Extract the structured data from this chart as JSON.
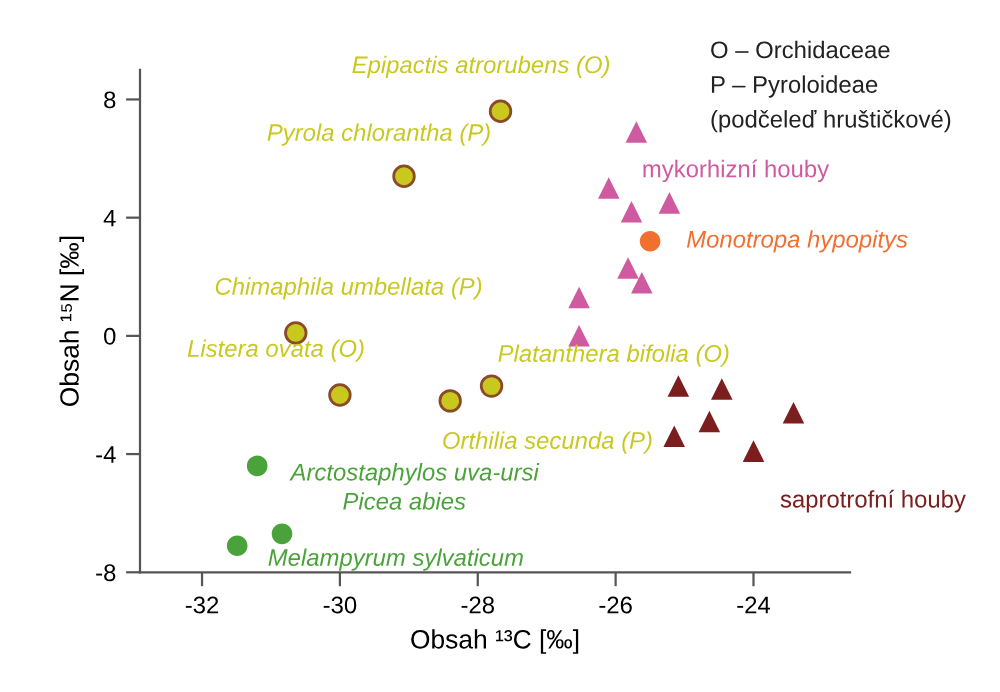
{
  "chart_data": {
    "type": "scatter",
    "xlabel": "Obsah ¹³C [‰]",
    "ylabel": "Obsah ¹⁵N [‰]",
    "xlim": [
      -32.9,
      -22.6
    ],
    "ylim": [
      -8,
      9
    ],
    "xticks": [
      -32,
      -30,
      -28,
      -26,
      -24
    ],
    "yticks": [
      -8,
      -4,
      0,
      4,
      8
    ],
    "grid": false,
    "legend": false,
    "series": [
      {
        "color": "#c8c81e",
        "marker": "circle",
        "x": [
          -27.67,
          -29.07,
          -30.64,
          -30.0,
          -27.8,
          -28.4
        ],
        "values": [
          7.6,
          5.4,
          0.1,
          -2.0,
          -1.7,
          -2.2
        ]
      },
      {
        "color": "#4aa33a",
        "marker": "circle",
        "x": [
          -31.2,
          -30.84,
          -31.49
        ],
        "values": [
          -4.4,
          -6.7,
          -7.1
        ]
      },
      {
        "color": "#f07030",
        "marker": "circle",
        "x": [
          -25.5
        ],
        "values": [
          3.2
        ]
      },
      {
        "name": "mykorhizní houby",
        "color": "#d05aa0",
        "marker": "triangle",
        "x": [
          -25.7,
          -26.1,
          -25.77,
          -25.22,
          -25.82,
          -25.62,
          -26.53,
          -26.53
        ],
        "values": [
          6.9,
          5.0,
          4.2,
          4.5,
          2.3,
          1.8,
          1.3,
          0.0
        ]
      },
      {
        "name": "saprotrofní houby",
        "color": "#7b1e1e",
        "marker": "triangle",
        "x": [
          -25.09,
          -24.46,
          -23.42,
          -24.64,
          -25.15,
          -24.0
        ],
        "values": [
          -1.7,
          -1.8,
          -2.6,
          -2.9,
          -3.4,
          -3.9
        ]
      }
    ],
    "annotations": [
      {
        "text": "Epipactis atrorubens (O)",
        "x": -27.67,
        "y": 7.6
      },
      {
        "text": "Pyrola chlorantha (P)",
        "x": -29.07,
        "y": 5.4
      },
      {
        "text": "Chimaphila umbellata (P)",
        "x": -30.64,
        "y": 0.1
      },
      {
        "text": "Listera ovata (O)",
        "x": -30.0,
        "y": -2.0
      },
      {
        "text": "Platanthera bifolia (O)",
        "x": -27.8,
        "y": -1.7
      },
      {
        "text": "Orthilia secunda (P)",
        "x": -28.4,
        "y": -2.2
      },
      {
        "text": "Arctostaphylos uva-ursi",
        "x": -31.2,
        "y": -4.4
      },
      {
        "text": "Picea abies",
        "x": -30.84,
        "y": -6.7
      },
      {
        "text": "Melampyrum sylvaticum",
        "x": -31.49,
        "y": -7.1
      },
      {
        "text": "Monotropa hypopitys",
        "x": -25.5,
        "y": 3.2
      },
      "O – Orchidaceae",
      "P – Pyroloideae",
      "(podčeleď hruštičkové)"
    ]
  }
}
